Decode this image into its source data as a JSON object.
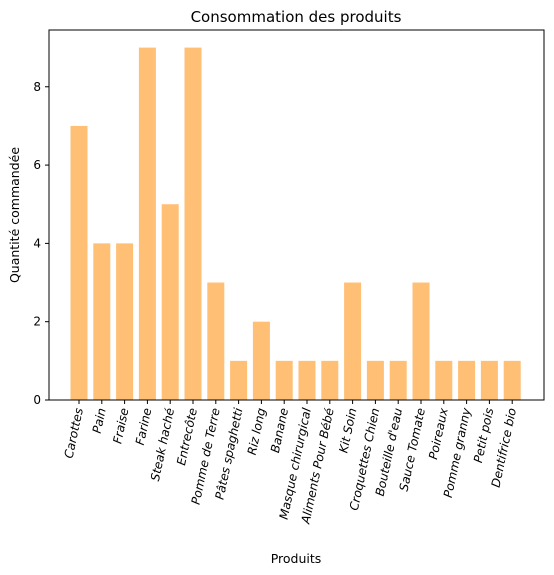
{
  "chart_data": {
    "type": "bar",
    "title": "Consommation des produits",
    "xlabel": "Produits",
    "ylabel": "Quantité commandée",
    "categories": [
      "Carottes",
      "Pain",
      "Fraise",
      "Farine",
      "Steak haché",
      "Entrecôte",
      "Pomme de Terre",
      "Pâtes spaghetti",
      "Riz long",
      "Banane",
      "Masque chirurgical",
      "Aliments Pour Bébé",
      "Kit Soin",
      "Croquettes Chien",
      "Bouteille d'eau",
      "Sauce Tomate",
      "Poireaux",
      "Pomme granny",
      "Petit pois",
      "Dentifrice bio"
    ],
    "values": [
      7,
      4,
      4,
      9,
      5,
      9,
      3,
      1,
      2,
      1,
      1,
      1,
      3,
      1,
      1,
      3,
      1,
      1,
      1,
      1
    ],
    "ylim": [
      0,
      9.45
    ],
    "yticks": [
      0,
      2,
      4,
      6,
      8
    ],
    "grid": false,
    "bar_color": "#ffbf74"
  }
}
